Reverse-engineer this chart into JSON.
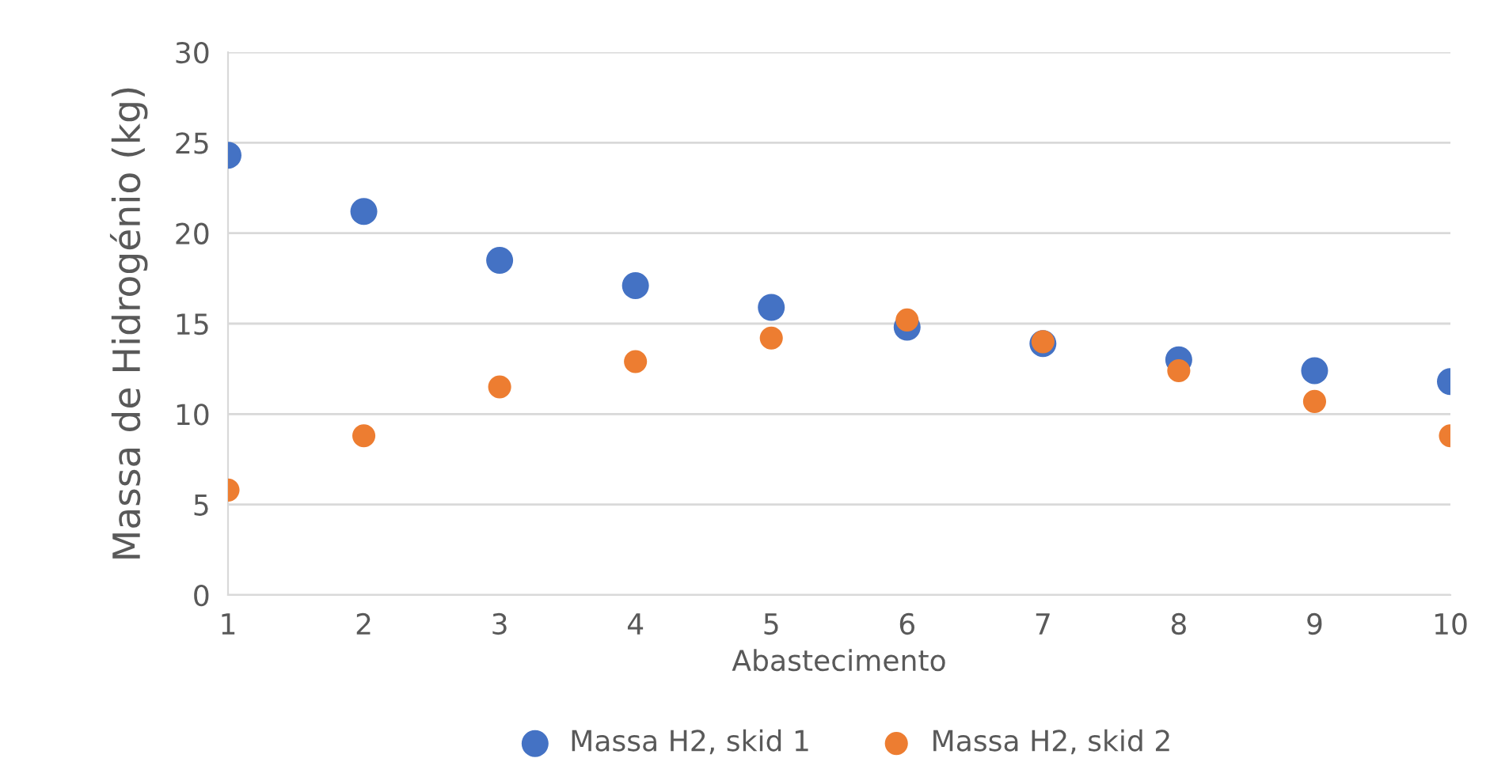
{
  "chart_data": {
    "type": "scatter",
    "xlabel": "Abastecimento",
    "ylabel": "Massa de Hidrogénio (kg)",
    "x": [
      1,
      2,
      3,
      4,
      5,
      6,
      7,
      8,
      9,
      10
    ],
    "series": [
      {
        "name": "Massa H2, skid 1",
        "color": "#4472c4",
        "values": [
          24.3,
          21.2,
          18.5,
          17.1,
          15.9,
          14.8,
          13.9,
          13.0,
          12.4,
          11.8
        ]
      },
      {
        "name": "Massa H2, skid 2",
        "color": "#ed7d31",
        "values": [
          5.8,
          8.8,
          11.5,
          12.9,
          14.2,
          15.2,
          14.0,
          12.4,
          10.7,
          8.8
        ]
      }
    ],
    "xlim": [
      1,
      10
    ],
    "xticks": [
      1,
      2,
      3,
      4,
      5,
      6,
      7,
      8,
      9,
      10
    ],
    "ylim": [
      0,
      30
    ],
    "yticks": [
      0,
      5,
      10,
      15,
      20,
      25,
      30
    ],
    "grid": "y",
    "legend": "bottom",
    "marker": "circle"
  }
}
